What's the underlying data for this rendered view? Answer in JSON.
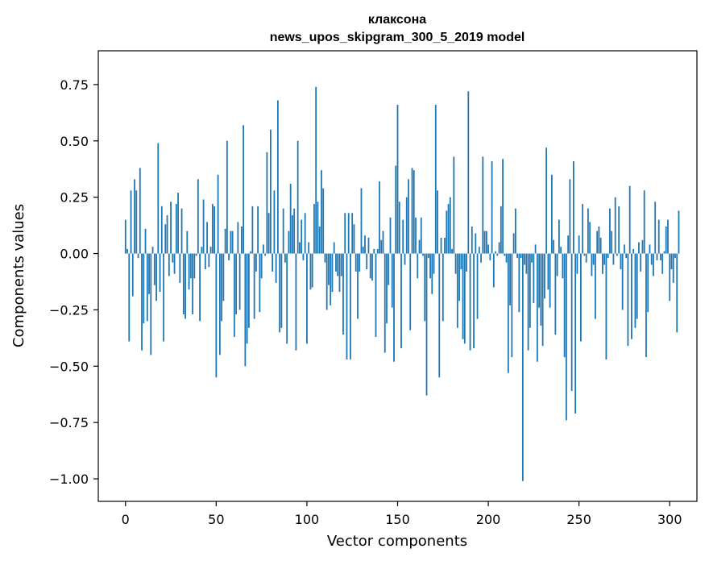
{
  "chart_data": {
    "type": "bar",
    "title": "клаксона",
    "subtitle": "news_upos_skipgram_300_5_2019 model",
    "xlabel": "Vector components",
    "ylabel": "Components values",
    "xlim": [
      -15,
      315
    ],
    "ylim": [
      -1.1,
      0.9
    ],
    "xticks": [
      0,
      50,
      100,
      150,
      200,
      250,
      300
    ],
    "yticks": [
      -1.0,
      -0.75,
      -0.5,
      -0.25,
      0.0,
      0.25,
      0.5,
      0.75
    ],
    "ytick_labels": [
      "−1.00",
      "−0.75",
      "−0.50",
      "−0.25",
      "0.00",
      "0.25",
      "0.50",
      "0.75"
    ],
    "xtick_labels": [
      "0",
      "50",
      "100",
      "150",
      "200",
      "250",
      "300"
    ],
    "bar_color": "#1f77b4",
    "series": [
      {
        "name": "components",
        "x_start": 0,
        "values": [
          0.15,
          0.02,
          -0.39,
          0.28,
          -0.19,
          0.33,
          0.28,
          -0.02,
          0.38,
          -0.43,
          -0.31,
          0.11,
          -0.3,
          -0.18,
          -0.45,
          0.03,
          -0.14,
          -0.21,
          0.49,
          -0.17,
          0.21,
          -0.39,
          0.13,
          0.17,
          -0.1,
          0.23,
          -0.04,
          -0.09,
          0.22,
          0.27,
          -0.13,
          0.2,
          -0.27,
          -0.29,
          0.1,
          -0.16,
          -0.11,
          -0.27,
          -0.11,
          -0.01,
          0.33,
          -0.3,
          0.03,
          0.24,
          -0.07,
          0.14,
          -0.06,
          0.03,
          0.22,
          0.21,
          -0.55,
          0.35,
          -0.45,
          -0.3,
          -0.21,
          0.11,
          0.5,
          -0.03,
          0.1,
          0.1,
          -0.37,
          -0.27,
          0.14,
          -0.25,
          0.12,
          0.57,
          -0.5,
          -0.4,
          -0.33,
          0.01,
          0.21,
          -0.29,
          -0.08,
          0.21,
          -0.26,
          -0.11,
          0.04,
          -0.01,
          0.45,
          0.18,
          0.55,
          -0.08,
          0.28,
          -0.13,
          0.68,
          -0.35,
          -0.33,
          0.2,
          -0.04,
          -0.4,
          0.1,
          0.31,
          0.17,
          0.2,
          -0.43,
          0.5,
          0.05,
          0.15,
          -0.03,
          0.18,
          -0.4,
          0.05,
          -0.16,
          -0.15,
          0.22,
          0.74,
          0.23,
          0.12,
          0.37,
          0.29,
          -0.04,
          -0.25,
          -0.14,
          -0.23,
          -0.17,
          0.05,
          -0.08,
          -0.1,
          -0.17,
          -0.1,
          -0.36,
          0.18,
          -0.47,
          0.18,
          -0.47,
          0.18,
          0.13,
          -0.08,
          -0.29,
          -0.08,
          0.29,
          0.03,
          0.08,
          -0.07,
          0.07,
          -0.11,
          -0.12,
          0.02,
          -0.37,
          0.02,
          0.32,
          0.06,
          0.1,
          -0.44,
          -0.31,
          -0.14,
          0.16,
          -0.24,
          -0.48,
          0.39,
          0.66,
          0.23,
          -0.42,
          0.15,
          -0.05,
          0.25,
          0.33,
          -0.34,
          0.38,
          0.37,
          0.16,
          -0.11,
          0.06,
          0.16,
          -0.01,
          -0.3,
          -0.63,
          -0.02,
          -0.11,
          -0.18,
          -0.09,
          0.66,
          0.28,
          -0.55,
          0.07,
          -0.3,
          0.07,
          0.19,
          0.22,
          0.25,
          0.02,
          0.43,
          -0.09,
          -0.33,
          -0.21,
          -0.07,
          -0.38,
          -0.4,
          -0.08,
          0.72,
          -0.43,
          0.12,
          -0.42,
          0.09,
          -0.29,
          0.03,
          -0.04,
          0.43,
          0.1,
          0.1,
          0.04,
          -0.03,
          0.41,
          -0.15,
          0.01,
          -0.01,
          0.05,
          0.21,
          0.42,
          -0.01,
          -0.04,
          -0.53,
          -0.23,
          -0.46,
          0.09,
          0.2,
          -0.02,
          -0.26,
          -0.02,
          -1.01,
          -0.05,
          -0.09,
          -0.43,
          -0.33,
          -0.04,
          -0.22,
          0.04,
          -0.48,
          -0.24,
          -0.32,
          -0.41,
          -0.2,
          0.47,
          -0.16,
          -0.24,
          0.35,
          0.06,
          -0.36,
          -0.1,
          0.15,
          0.03,
          -0.11,
          -0.46,
          -0.74,
          0.08,
          0.33,
          -0.61,
          0.41,
          -0.71,
          -0.09,
          0.08,
          -0.39,
          0.22,
          -0.01,
          -0.04,
          0.2,
          0.14,
          -0.1,
          -0.05,
          -0.29,
          0.1,
          0.12,
          0.07,
          -0.09,
          -0.05,
          -0.47,
          -0.02,
          0.2,
          0.1,
          -0.05,
          0.25,
          -0.01,
          0.21,
          -0.07,
          -0.25,
          0.04,
          -0.02,
          -0.41,
          0.3,
          -0.38,
          0.02,
          -0.33,
          -0.29,
          0.05,
          -0.08,
          0.06,
          0.28,
          -0.46,
          -0.26,
          0.04,
          -0.05,
          -0.1,
          0.23,
          -0.03,
          0.15,
          -0.03,
          -0.09,
          0.01,
          0.12,
          0.15,
          -0.21,
          -0.07,
          -0.13,
          -0.02,
          -0.35,
          0.19
        ]
      }
    ],
    "grid": false,
    "legend": "none"
  }
}
